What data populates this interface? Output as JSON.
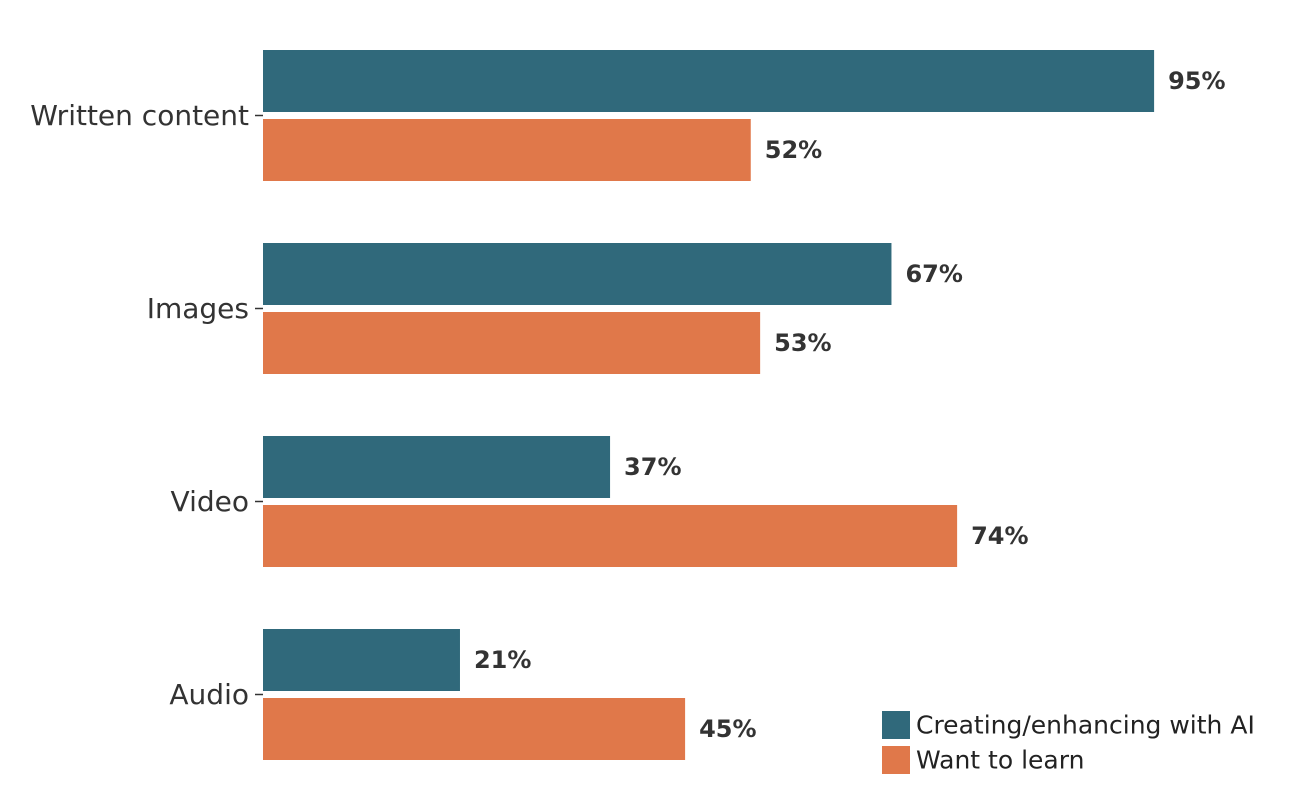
{
  "chart_data": {
    "type": "bar",
    "orientation": "horizontal",
    "categories": [
      "Written content",
      "Images",
      "Video",
      "Audio"
    ],
    "series": [
      {
        "name": "Creating/enhancing with AI",
        "values": [
          95,
          67,
          37,
          21
        ],
        "labels": [
          "95%",
          "67%",
          "37%",
          "21%"
        ],
        "color": "#30697B"
      },
      {
        "name": "Want to learn",
        "values": [
          52,
          53,
          74,
          45
        ],
        "labels": [
          "52%",
          "53%",
          "74%",
          "45%"
        ],
        "color": "#E0784A"
      }
    ],
    "xlim": [
      0,
      100
    ],
    "grid": false,
    "legend_position": "bottom-right"
  }
}
